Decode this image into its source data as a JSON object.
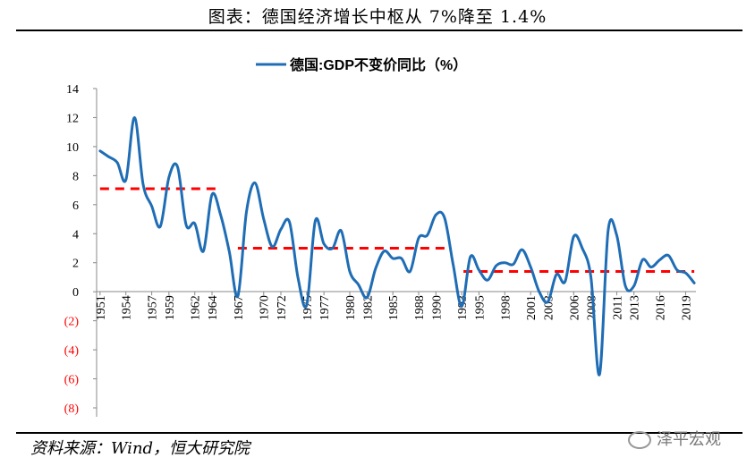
{
  "title": "图表：德国经济增长中枢从 7%降至 1.4%",
  "source": "资料来源：Wind，恒大研究院",
  "watermark": "泽平宏观",
  "chart_data": {
    "type": "line",
    "legend": "德国:GDP不变价同比（%）",
    "legend_position": "top-center",
    "grid": false,
    "ylim": [
      -8,
      14
    ],
    "y_ticks": [
      {
        "v": 14,
        "label": "14"
      },
      {
        "v": 12,
        "label": "12"
      },
      {
        "v": 10,
        "label": "10"
      },
      {
        "v": 8,
        "label": "8"
      },
      {
        "v": 6,
        "label": "6"
      },
      {
        "v": 4,
        "label": "4"
      },
      {
        "v": 2,
        "label": "2"
      },
      {
        "v": 0,
        "label": "0"
      },
      {
        "v": -2,
        "label": "(2)"
      },
      {
        "v": -4,
        "label": "(4)"
      },
      {
        "v": -6,
        "label": "(6)"
      },
      {
        "v": -8,
        "label": "(8)"
      }
    ],
    "x_tick_labels": [
      "1951",
      "1954",
      "1957",
      "1959",
      "1962",
      "1964",
      "1967",
      "1970",
      "1972",
      "1975",
      "1977",
      "1980",
      "1982",
      "1985",
      "1988",
      "1990",
      "1993",
      "1995",
      "1998",
      "2001",
      "2003",
      "2006",
      "2008",
      "2011",
      "2013",
      "2016",
      "2019"
    ],
    "xlim": [
      1950.6,
      2020.2
    ],
    "series": [
      {
        "name": "德国:GDP不变价同比（%）",
        "color": "#1f6db5",
        "x": [
          1951,
          1952,
          1953,
          1954,
          1955,
          1956,
          1957,
          1958,
          1959,
          1960,
          1961,
          1962,
          1963,
          1964,
          1965,
          1966,
          1967,
          1968,
          1969,
          1970,
          1971,
          1972,
          1973,
          1974,
          1975,
          1976,
          1977,
          1978,
          1979,
          1980,
          1981,
          1982,
          1983,
          1984,
          1985,
          1986,
          1987,
          1988,
          1989,
          1990,
          1991,
          1992,
          1993,
          1994,
          1995,
          1996,
          1997,
          1998,
          1999,
          2000,
          2001,
          2002,
          2003,
          2004,
          2005,
          2006,
          2007,
          2008,
          2009,
          2010,
          2011,
          2012,
          2013,
          2014,
          2015,
          2016,
          2017,
          2018,
          2019,
          2020
        ],
        "y": [
          9.7,
          9.3,
          8.9,
          7.7,
          12.0,
          7.4,
          5.9,
          4.5,
          7.9,
          8.6,
          4.6,
          4.7,
          2.8,
          6.7,
          5.3,
          2.8,
          -0.3,
          5.5,
          7.5,
          5.0,
          3.1,
          4.3,
          4.8,
          0.9,
          -0.9,
          4.9,
          3.3,
          3.0,
          4.2,
          1.4,
          0.5,
          -0.4,
          1.6,
          2.8,
          2.3,
          2.3,
          1.4,
          3.7,
          3.9,
          5.3,
          5.1,
          1.9,
          -1.0,
          2.4,
          1.5,
          0.8,
          1.8,
          2.0,
          1.9,
          2.9,
          1.7,
          0.0,
          -0.7,
          1.2,
          0.7,
          3.8,
          3.0,
          1.0,
          -5.7,
          4.2,
          3.9,
          0.4,
          0.4,
          2.2,
          1.7,
          2.2,
          2.5,
          1.5,
          1.3,
          0.6
        ]
      }
    ],
    "trend_levels": [
      {
        "x": [
          1951,
          1965
        ],
        "y": 7.1,
        "color": "#ff0000"
      },
      {
        "x": [
          1967,
          1991
        ],
        "y": 3.0,
        "color": "#ff0000"
      },
      {
        "x": [
          1993.2,
          2020
        ],
        "y": 1.4,
        "color": "#ff0000"
      }
    ]
  }
}
